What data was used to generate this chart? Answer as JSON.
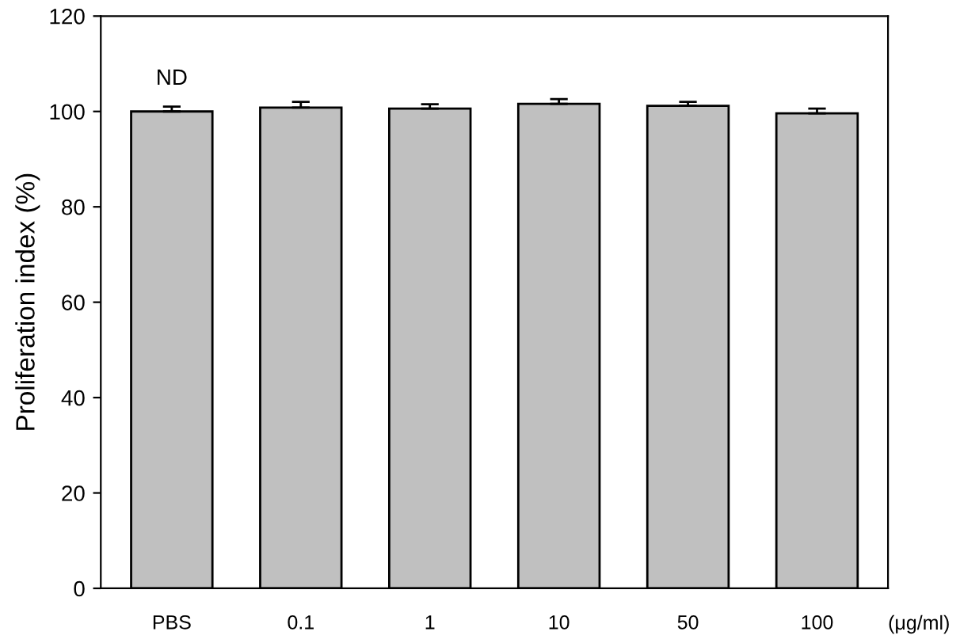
{
  "chart_data": {
    "type": "bar",
    "categories": [
      "PBS",
      "0.1",
      "1",
      "10",
      "50",
      "100"
    ],
    "values": [
      100,
      100.8,
      100.6,
      101.6,
      101.2,
      99.6
    ],
    "errors": [
      1,
      1.2,
      0.9,
      1,
      0.8,
      1
    ],
    "color": "#c0c0c0",
    "ylabel": "Proliferation index (%)",
    "xlabel": "(μg/ml)",
    "ylim": [
      0,
      120
    ],
    "yticks": [
      0,
      20,
      40,
      60,
      80,
      100,
      120
    ],
    "grid": false,
    "annotations": [
      "ND"
    ]
  }
}
